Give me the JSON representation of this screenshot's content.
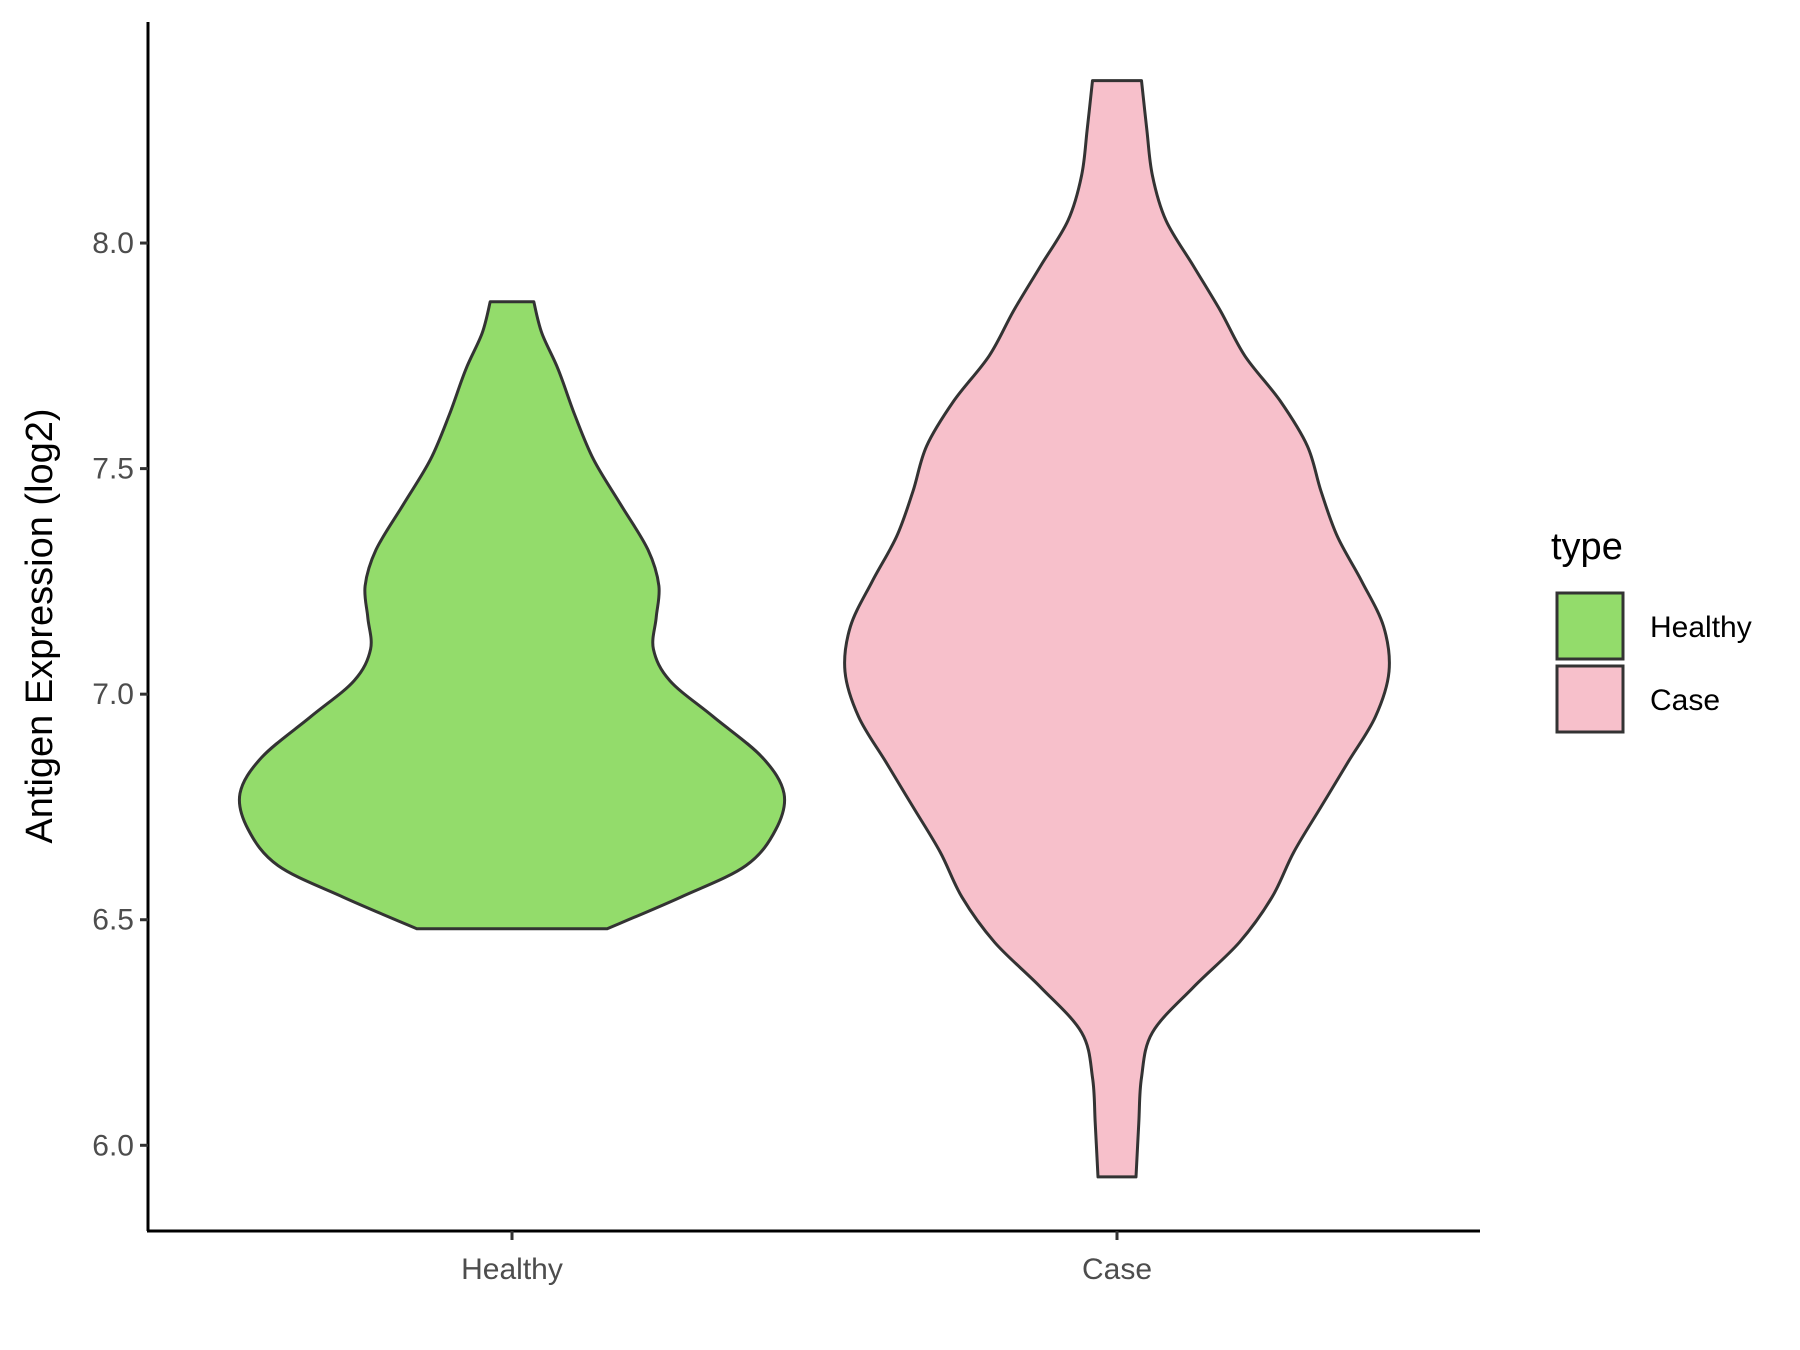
{
  "chart_data": {
    "type": "violin",
    "title": "",
    "xlabel": "",
    "ylabel": "Antigen Expression (log2)",
    "ylim": [
      5.81,
      8.49
    ],
    "yticks": [
      6.0,
      6.5,
      7.0,
      7.5,
      8.0
    ],
    "ytick_labels": [
      "6.0",
      "6.5",
      "7.0",
      "7.5",
      "8.0"
    ],
    "categories": [
      "Healthy",
      "Case"
    ],
    "grid": false,
    "legend": {
      "title": "type",
      "position": "right",
      "entries": [
        {
          "label": "Healthy",
          "color": "#93dc6b"
        },
        {
          "label": "Case",
          "color": "#f7c0cb"
        }
      ]
    },
    "outline_color": "#333333",
    "series": [
      {
        "category": "Healthy",
        "color": "#93dc6b",
        "min": 6.48,
        "max": 7.87,
        "density": [
          [
            6.48,
            0.35
          ],
          [
            6.55,
            0.62
          ],
          [
            6.62,
            0.86
          ],
          [
            6.7,
            0.97
          ],
          [
            6.78,
            1.0
          ],
          [
            6.86,
            0.92
          ],
          [
            6.95,
            0.74
          ],
          [
            7.03,
            0.58
          ],
          [
            7.1,
            0.52
          ],
          [
            7.17,
            0.53
          ],
          [
            7.24,
            0.54
          ],
          [
            7.32,
            0.5
          ],
          [
            7.42,
            0.4
          ],
          [
            7.52,
            0.3
          ],
          [
            7.62,
            0.23
          ],
          [
            7.72,
            0.17
          ],
          [
            7.8,
            0.11
          ],
          [
            7.87,
            0.08
          ]
        ]
      },
      {
        "category": "Case",
        "color": "#f7c0cb",
        "min": 5.93,
        "max": 8.36,
        "density": [
          [
            5.93,
            0.07
          ],
          [
            6.05,
            0.08
          ],
          [
            6.15,
            0.09
          ],
          [
            6.25,
            0.13
          ],
          [
            6.35,
            0.28
          ],
          [
            6.45,
            0.45
          ],
          [
            6.55,
            0.57
          ],
          [
            6.65,
            0.65
          ],
          [
            6.75,
            0.75
          ],
          [
            6.85,
            0.85
          ],
          [
            6.95,
            0.95
          ],
          [
            7.05,
            1.0
          ],
          [
            7.15,
            0.98
          ],
          [
            7.25,
            0.9
          ],
          [
            7.35,
            0.81
          ],
          [
            7.45,
            0.75
          ],
          [
            7.55,
            0.7
          ],
          [
            7.65,
            0.6
          ],
          [
            7.75,
            0.47
          ],
          [
            7.85,
            0.38
          ],
          [
            7.95,
            0.28
          ],
          [
            8.05,
            0.18
          ],
          [
            8.15,
            0.13
          ],
          [
            8.25,
            0.11
          ],
          [
            8.36,
            0.09
          ]
        ]
      }
    ]
  }
}
